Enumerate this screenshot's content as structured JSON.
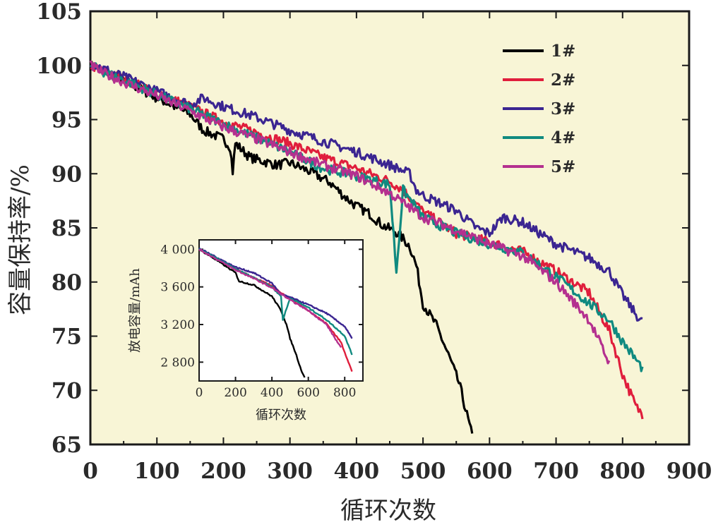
{
  "chart_data": [
    {
      "type": "line",
      "title": "",
      "xlabel": "循环次数",
      "ylabel": "容量保持率/%",
      "xlim": [
        0,
        900
      ],
      "ylim": [
        65,
        105
      ],
      "xticks": [
        0,
        100,
        200,
        300,
        400,
        500,
        600,
        700,
        800,
        900
      ],
      "yticks": [
        65,
        70,
        75,
        80,
        85,
        90,
        95,
        100,
        105
      ],
      "legend": "top-right",
      "series": [
        {
          "name": "1#",
          "color": "#000000",
          "x": [
            0,
            20,
            60,
            100,
            150,
            170,
            200,
            210,
            214,
            218,
            240,
            280,
            300,
            330,
            360,
            380,
            400,
            420,
            440,
            460,
            470,
            480,
            490,
            500,
            520,
            540,
            555,
            565,
            575
          ],
          "y": [
            100,
            99.5,
            98.3,
            97,
            95.5,
            94,
            93.2,
            92.5,
            90.2,
            92.8,
            91.5,
            90.8,
            91,
            90.2,
            89.2,
            88,
            87,
            86.3,
            85.2,
            84.6,
            84,
            83.3,
            81.5,
            78,
            76,
            73,
            70.5,
            68,
            65.5
          ]
        },
        {
          "name": "2#",
          "color": "#e01e3c",
          "x": [
            0,
            20,
            60,
            100,
            150,
            200,
            250,
            300,
            350,
            400,
            450,
            470,
            500,
            550,
            600,
            650,
            700,
            750,
            780,
            800,
            820,
            830
          ],
          "y": [
            100,
            99.5,
            98.5,
            97.5,
            96.2,
            94.8,
            93.8,
            92.8,
            91.5,
            90.5,
            89.3,
            88.5,
            86.5,
            84.5,
            83.7,
            82.8,
            81,
            79,
            75.5,
            71.5,
            68.5,
            67.8
          ]
        },
        {
          "name": "3#",
          "color": "#3b2591",
          "x": [
            0,
            20,
            60,
            100,
            150,
            170,
            200,
            250,
            300,
            350,
            400,
            450,
            480,
            490,
            500,
            550,
            580,
            600,
            620,
            650,
            700,
            750,
            780,
            800,
            820,
            830
          ],
          "y": [
            100.3,
            99.7,
            98.7,
            97.6,
            96.4,
            97,
            96.2,
            95.2,
            94,
            93,
            92,
            90.8,
            90,
            88.5,
            88,
            86.6,
            85,
            84.5,
            86,
            85.5,
            83.5,
            82.2,
            81,
            78.8,
            77,
            76.3
          ]
        },
        {
          "name": "4#",
          "color": "#108a80",
          "x": [
            0,
            20,
            60,
            100,
            150,
            200,
            250,
            300,
            350,
            400,
            450,
            460,
            470,
            500,
            550,
            600,
            650,
            700,
            750,
            780,
            800,
            830
          ],
          "y": [
            100,
            99.4,
            98.4,
            97.3,
            96,
            94.6,
            93.3,
            92,
            90.5,
            89.8,
            89,
            81,
            88.5,
            86,
            84.5,
            83.5,
            82.7,
            80.5,
            78,
            76.5,
            74.5,
            72
          ]
        },
        {
          "name": "5#",
          "color": "#b4308f",
          "x": [
            0,
            20,
            60,
            100,
            150,
            200,
            250,
            300,
            350,
            400,
            450,
            500,
            550,
            600,
            650,
            700,
            750,
            780
          ],
          "y": [
            100,
            99.3,
            98.2,
            97.2,
            95.8,
            94.3,
            93.2,
            92,
            90.8,
            89.8,
            88.2,
            86,
            84.8,
            83.5,
            82.4,
            80,
            76.5,
            72.5
          ]
        }
      ]
    },
    {
      "type": "line",
      "title": "",
      "xlabel": "循环次数",
      "ylabel": "放电容量/mAh",
      "xlim": [
        0,
        900
      ],
      "ylim": [
        2600,
        4100
      ],
      "xticks": [
        0,
        200,
        400,
        600,
        800
      ],
      "xtick_labels": [
        "0",
        "200",
        "400",
        "600",
        "800"
      ],
      "yticks": [
        2800,
        3200,
        3600,
        4000
      ],
      "ytick_labels": [
        "2 800",
        "3 200",
        "3 600",
        "4 000"
      ],
      "series": [
        {
          "name": "1#",
          "color": "#000000",
          "x": [
            0,
            100,
            200,
            220,
            300,
            400,
            450,
            480,
            500,
            530,
            560,
            580
          ],
          "y": [
            4000,
            3880,
            3750,
            3660,
            3620,
            3500,
            3350,
            3200,
            3050,
            2900,
            2720,
            2640
          ]
        },
        {
          "name": "2#",
          "color": "#e01e3c",
          "x": [
            0,
            100,
            200,
            300,
            400,
            500,
            600,
            700,
            780,
            840
          ],
          "y": [
            4000,
            3900,
            3790,
            3700,
            3610,
            3470,
            3350,
            3210,
            3010,
            2700
          ]
        },
        {
          "name": "3#",
          "color": "#3b2591",
          "x": [
            0,
            100,
            200,
            300,
            400,
            450,
            500,
            600,
            700,
            800,
            840
          ],
          "y": [
            4010,
            3910,
            3810,
            3750,
            3640,
            3520,
            3490,
            3410,
            3320,
            3180,
            3050
          ]
        },
        {
          "name": "4#",
          "color": "#108a80",
          "x": [
            0,
            100,
            200,
            300,
            400,
            450,
            460,
            500,
            600,
            700,
            800,
            840
          ],
          "y": [
            4000,
            3900,
            3790,
            3700,
            3600,
            3500,
            3250,
            3480,
            3380,
            3250,
            3080,
            2880
          ]
        },
        {
          "name": "5#",
          "color": "#b4308f",
          "x": [
            0,
            100,
            200,
            300,
            400,
            500,
            600,
            700,
            780
          ],
          "y": [
            4000,
            3890,
            3780,
            3690,
            3590,
            3460,
            3350,
            3200,
            2950
          ]
        }
      ]
    }
  ],
  "colors": {
    "plot_background": "#f8f5d6",
    "axis": "#1a1a1a"
  }
}
